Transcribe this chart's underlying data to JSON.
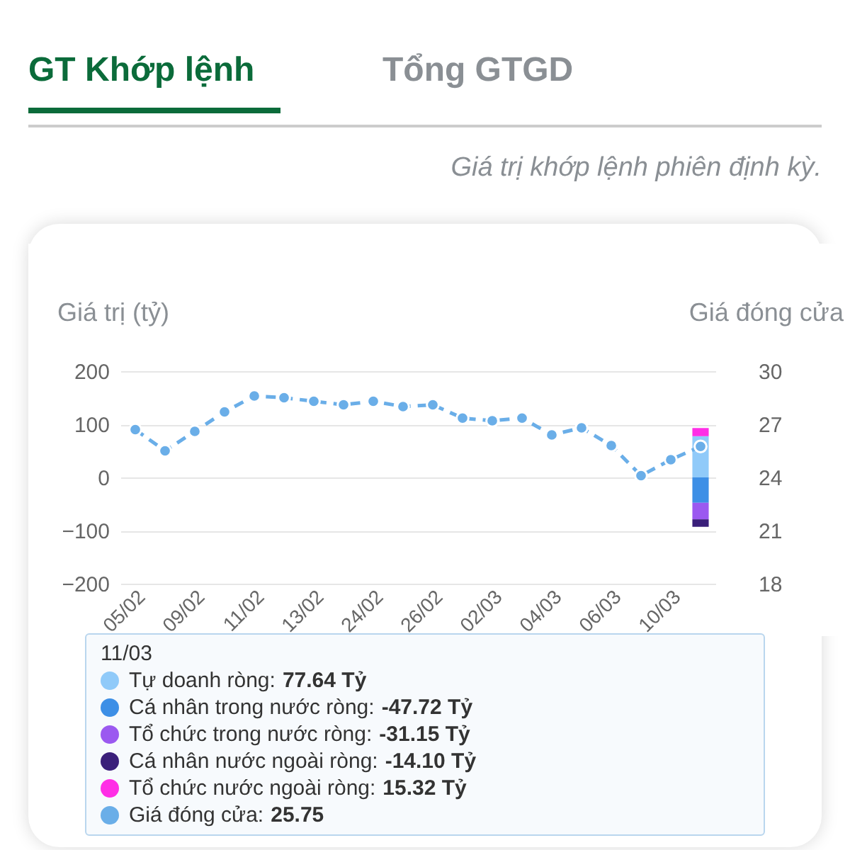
{
  "chart_data": {
    "type": "bar",
    "stacked": true,
    "subtitle": "Giá trị khớp lệnh phiên định kỳ.",
    "ylabel": "Giá trị (tỷ)",
    "y2label": "Giá đóng cửa",
    "annotations": [
      "GT Khớp lệnh",
      "Tổng GTGD",
      "11/03",
      "77.64 Tỷ",
      "-47.72 Tỷ",
      "-31.15 Tỷ",
      "-14.10 Tỷ",
      "15.32 Tỷ",
      "25.75"
    ],
    "categories": [
      "05/02",
      null,
      "09/02",
      null,
      "11/02",
      null,
      "13/02",
      null,
      "24/02",
      null,
      "26/02",
      null,
      "02/03",
      null,
      "04/03",
      null,
      "06/03",
      null,
      "10/03",
      null
    ],
    "ylim": [
      -200,
      200
    ],
    "yticks": [
      -200,
      -100,
      0,
      100,
      200
    ],
    "y2lim": [
      18,
      30
    ],
    "y2ticks": [
      18,
      21,
      24,
      27,
      30
    ],
    "grid": "y",
    "legend": "bottom",
    "series": [
      {
        "name": "Tự doanh ròng:",
        "color": "#90caf9",
        "values": [
          null,
          null,
          null,
          null,
          null,
          null,
          null,
          null,
          null,
          null,
          null,
          null,
          null,
          null,
          null,
          null,
          null,
          null,
          null,
          77.64
        ]
      },
      {
        "name": "Cá nhân trong nước ròng:",
        "color": "#3d8fe6",
        "values": [
          null,
          null,
          null,
          null,
          null,
          null,
          null,
          null,
          null,
          null,
          null,
          null,
          null,
          null,
          null,
          null,
          null,
          null,
          null,
          -47.72
        ]
      },
      {
        "name": "Tổ chức trong nước ròng:",
        "color": "#9b59f0",
        "values": [
          null,
          null,
          null,
          null,
          null,
          null,
          null,
          null,
          null,
          null,
          null,
          null,
          null,
          null,
          null,
          null,
          null,
          null,
          null,
          -31.15
        ]
      },
      {
        "name": "Cá nhân nước ngoài ròng:",
        "color": "#3a1f7a",
        "values": [
          null,
          null,
          null,
          null,
          null,
          null,
          null,
          null,
          null,
          null,
          null,
          null,
          null,
          null,
          null,
          null,
          null,
          null,
          null,
          -14.1
        ]
      },
      {
        "name": "Tổ chức nước ngoài ròng:",
        "color": "#ff2ee6",
        "values": [
          null,
          null,
          null,
          null,
          null,
          null,
          null,
          null,
          null,
          null,
          null,
          null,
          null,
          null,
          null,
          null,
          null,
          null,
          null,
          15.32
        ]
      },
      {
        "name": "Giá đóng cửa:",
        "type": "line",
        "axis": "y2",
        "color": "#6aaee8",
        "marker": "circle",
        "line_style": "dashed",
        "values": [
          26.7,
          25.5,
          26.6,
          27.7,
          28.6,
          28.5,
          28.3,
          28.1,
          28.3,
          28.0,
          28.1,
          27.35,
          27.2,
          27.35,
          26.4,
          26.8,
          25.8,
          24.1,
          25.0,
          25.75
        ]
      }
    ]
  }
}
